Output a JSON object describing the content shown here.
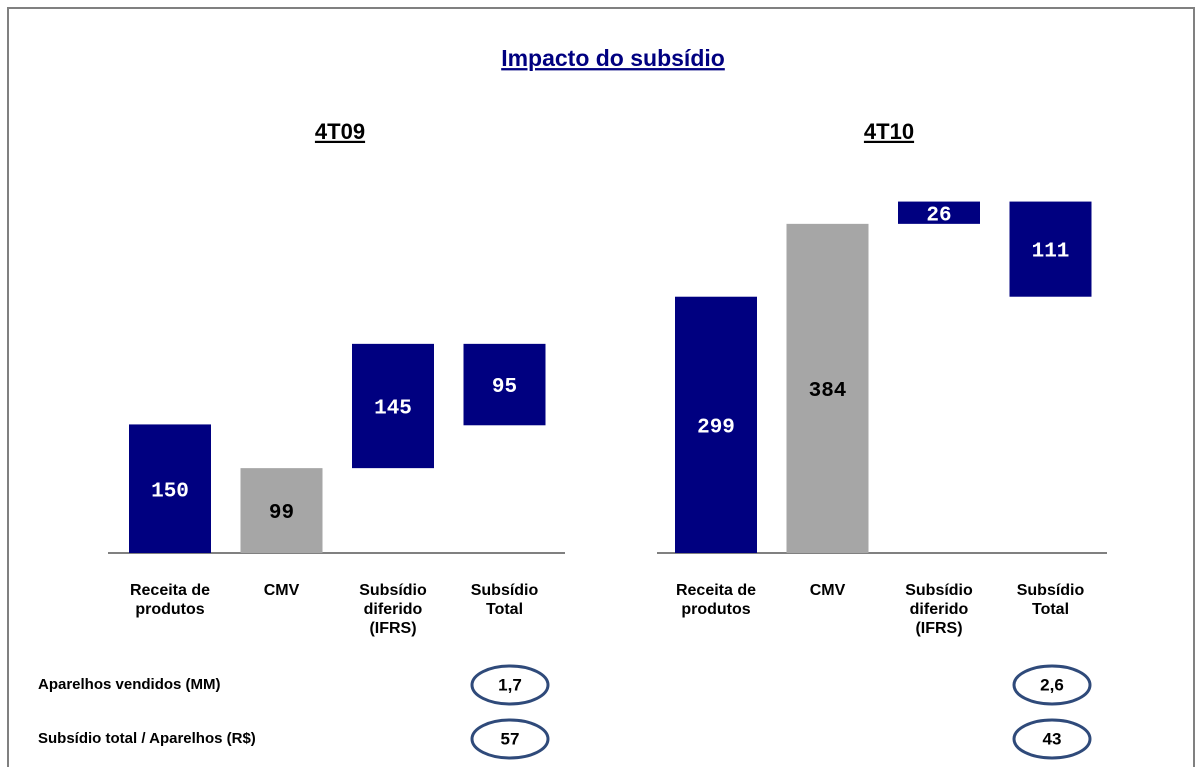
{
  "title": "Impacto do subsídio",
  "chart_data": [
    {
      "type": "waterfall",
      "title": "4T09",
      "categories": [
        "Receita de produtos",
        "CMV",
        "Subsídio diferido (IFRS)",
        "Subsídio Total"
      ],
      "values": [
        150,
        99,
        145,
        95
      ],
      "colors": [
        "#000080",
        "#a6a6a6",
        "#000080",
        "#000080"
      ],
      "ylim": [
        0,
        420
      ]
    },
    {
      "type": "waterfall",
      "title": "4T10",
      "categories": [
        "Receita de produtos",
        "CMV",
        "Subsídio diferido (IFRS)",
        "Subsídio Total"
      ],
      "values": [
        299,
        384,
        26,
        111
      ],
      "colors": [
        "#000080",
        "#a6a6a6",
        "#000080",
        "#000080"
      ],
      "ylim": [
        0,
        420
      ]
    }
  ],
  "summary": {
    "rows": [
      {
        "label": "Aparelhos vendidos (MM)",
        "values": [
          "1,7",
          "2,6"
        ]
      },
      {
        "label": "Subsídio total / Aparelhos (R$)",
        "values": [
          "57",
          "43"
        ]
      }
    ]
  }
}
